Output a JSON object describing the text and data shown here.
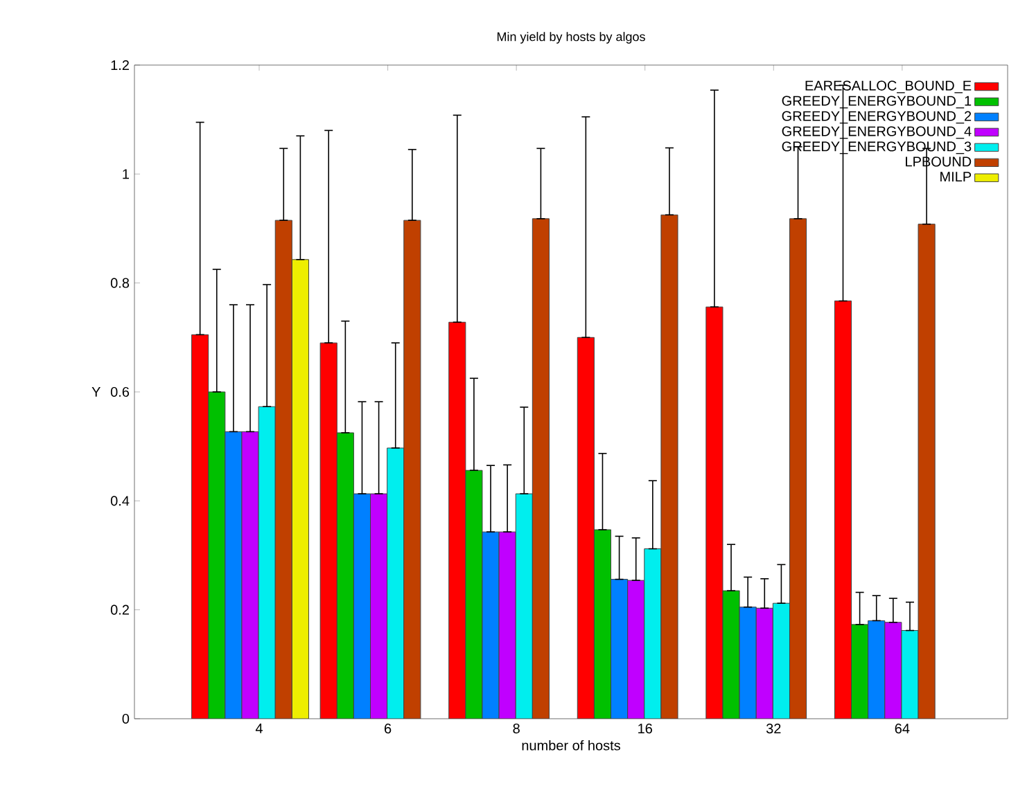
{
  "chart_data": {
    "type": "bar",
    "title": "Min yield by hosts by algos",
    "xlabel": "number of hosts",
    "ylabel": "Y",
    "categories": [
      "4",
      "6",
      "8",
      "16",
      "32",
      "64"
    ],
    "ylim": [
      0,
      1.2
    ],
    "yticks": [
      0,
      0.2,
      0.4,
      0.6,
      0.8,
      1,
      1.2
    ],
    "legend": "top right",
    "grid": false,
    "series": [
      {
        "name": "EARESALLOC_BOUND_E",
        "color": "#ff0000",
        "values": [
          0.705,
          0.69,
          0.728,
          0.7,
          0.756,
          0.767
        ],
        "errors": [
          [
            0.705,
            1.095
          ],
          [
            0.69,
            1.08
          ],
          [
            0.728,
            1.108
          ],
          [
            0.7,
            1.105
          ],
          [
            0.756,
            1.154
          ],
          [
            0.767,
            1.163
          ]
        ]
      },
      {
        "name": "GREEDY_ENERGYBOUND_1",
        "color": "#00c000",
        "values": [
          0.6,
          0.525,
          0.456,
          0.347,
          0.235,
          0.173
        ],
        "errors": [
          [
            0.6,
            0.825
          ],
          [
            0.525,
            0.73
          ],
          [
            0.456,
            0.625
          ],
          [
            0.347,
            0.487
          ],
          [
            0.235,
            0.32
          ],
          [
            0.173,
            0.232
          ]
        ]
      },
      {
        "name": "GREEDY_ENERGYBOUND_2",
        "color": "#0080ff",
        "values": [
          0.527,
          0.413,
          0.343,
          0.256,
          0.205,
          0.18
        ],
        "errors": [
          [
            0.527,
            0.76
          ],
          [
            0.413,
            0.582
          ],
          [
            0.343,
            0.465
          ],
          [
            0.256,
            0.335
          ],
          [
            0.205,
            0.26
          ],
          [
            0.18,
            0.226
          ]
        ]
      },
      {
        "name": "GREEDY_ENERGYBOUND_4",
        "color": "#c000ff",
        "values": [
          0.527,
          0.413,
          0.343,
          0.254,
          0.203,
          0.177
        ],
        "errors": [
          [
            0.527,
            0.76
          ],
          [
            0.413,
            0.582
          ],
          [
            0.343,
            0.466
          ],
          [
            0.254,
            0.332
          ],
          [
            0.203,
            0.257
          ],
          [
            0.177,
            0.221
          ]
        ]
      },
      {
        "name": "GREEDY_ENERGYBOUND_3",
        "color": "#00eeee",
        "values": [
          0.573,
          0.497,
          0.413,
          0.312,
          0.212,
          0.162
        ],
        "errors": [
          [
            0.573,
            0.797
          ],
          [
            0.497,
            0.69
          ],
          [
            0.413,
            0.572
          ],
          [
            0.312,
            0.437
          ],
          [
            0.212,
            0.283
          ],
          [
            0.162,
            0.214
          ]
        ]
      },
      {
        "name": "LPBOUND",
        "color": "#c04000",
        "values": [
          0.915,
          0.915,
          0.918,
          0.925,
          0.918,
          0.908
        ],
        "errors": [
          [
            0.915,
            1.047
          ],
          [
            0.915,
            1.045
          ],
          [
            0.918,
            1.047
          ],
          [
            0.925,
            1.048
          ],
          [
            0.918,
            1.05
          ],
          [
            0.908,
            1.047
          ]
        ]
      },
      {
        "name": "MILP",
        "color": "#eeee00",
        "values": [
          0.843,
          null,
          null,
          null,
          null,
          null
        ],
        "errors": [
          [
            0.843,
            1.07
          ],
          null,
          null,
          null,
          null,
          null
        ]
      }
    ]
  }
}
